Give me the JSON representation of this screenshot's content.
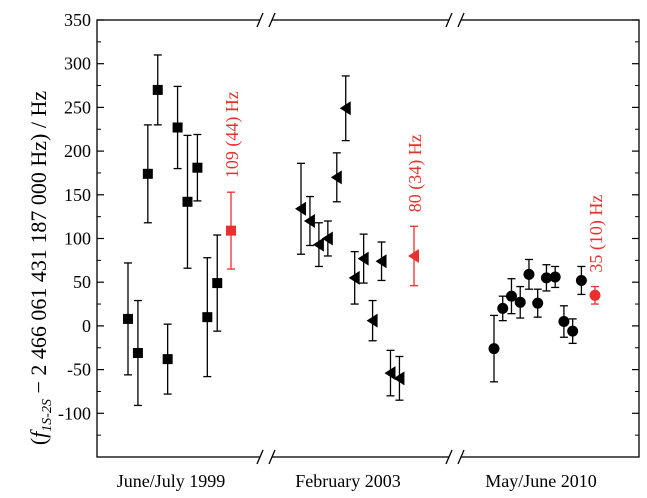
{
  "chart_data": {
    "type": "scatter",
    "title": "",
    "xlabel": "",
    "ylabel": {
      "open": "(",
      "f": "f",
      "sub": "1S-2S",
      "rest": " − 2 466 061 431 187 000 Hz) / Hz"
    },
    "ylim": [
      -150,
      350
    ],
    "yticks": [
      -100,
      -50,
      0,
      50,
      100,
      150,
      200,
      250,
      300,
      350
    ],
    "grid": false,
    "colors": {
      "data": "#000000",
      "highlight": "#e8312f"
    },
    "categories": [
      "June/July 1999",
      "February 2003",
      "May/June 2010"
    ],
    "series": [
      {
        "category": "June/July 1999",
        "marker": "square",
        "points": [
          {
            "x": 1,
            "y": 8,
            "err": 64
          },
          {
            "x": 2,
            "y": -31,
            "err": 60
          },
          {
            "x": 3,
            "y": 174,
            "err": 56
          },
          {
            "x": 4,
            "y": 270,
            "err": 40
          },
          {
            "x": 5,
            "y": -38,
            "err": 40
          },
          {
            "x": 6,
            "y": 227,
            "err": 47
          },
          {
            "x": 7,
            "y": 142,
            "err": 76
          },
          {
            "x": 8,
            "y": 181,
            "err": 38
          },
          {
            "x": 9,
            "y": 10,
            "err": 68
          },
          {
            "x": 10,
            "y": 49,
            "err": 55
          }
        ],
        "result": {
          "y": 109,
          "err": 44,
          "label": "109 (44) Hz"
        }
      },
      {
        "category": "February 2003",
        "marker": "triangle-left",
        "points": [
          {
            "x": 1,
            "y": 134,
            "err": 52
          },
          {
            "x": 2,
            "y": 120,
            "err": 28
          },
          {
            "x": 3,
            "y": 93,
            "err": 25
          },
          {
            "x": 4,
            "y": 100,
            "err": 20
          },
          {
            "x": 5,
            "y": 170,
            "err": 28
          },
          {
            "x": 6,
            "y": 249,
            "err": 37
          },
          {
            "x": 7,
            "y": 55,
            "err": 30
          },
          {
            "x": 8,
            "y": 77,
            "err": 28
          },
          {
            "x": 9,
            "y": 6,
            "err": 23
          },
          {
            "x": 10,
            "y": 74,
            "err": 22
          },
          {
            "x": 11,
            "y": -54,
            "err": 26
          },
          {
            "x": 12,
            "y": -60,
            "err": 25
          }
        ],
        "result": {
          "y": 80,
          "err": 34,
          "label": "80 (34) Hz"
        }
      },
      {
        "category": "May/June 2010",
        "marker": "circle",
        "points": [
          {
            "x": 1,
            "y": -26,
            "err": 38
          },
          {
            "x": 2,
            "y": 20,
            "err": 14
          },
          {
            "x": 3,
            "y": 34,
            "err": 20
          },
          {
            "x": 4,
            "y": 27,
            "err": 18
          },
          {
            "x": 5,
            "y": 59,
            "err": 17
          },
          {
            "x": 6,
            "y": 26,
            "err": 16
          },
          {
            "x": 7,
            "y": 55,
            "err": 15
          },
          {
            "x": 8,
            "y": 56,
            "err": 12
          },
          {
            "x": 9,
            "y": 5,
            "err": 18
          },
          {
            "x": 10,
            "y": -6,
            "err": 14
          },
          {
            "x": 11,
            "y": 52,
            "err": 16
          }
        ],
        "result": {
          "y": 35,
          "err": 10,
          "label": "35 (10) Hz"
        }
      }
    ]
  }
}
